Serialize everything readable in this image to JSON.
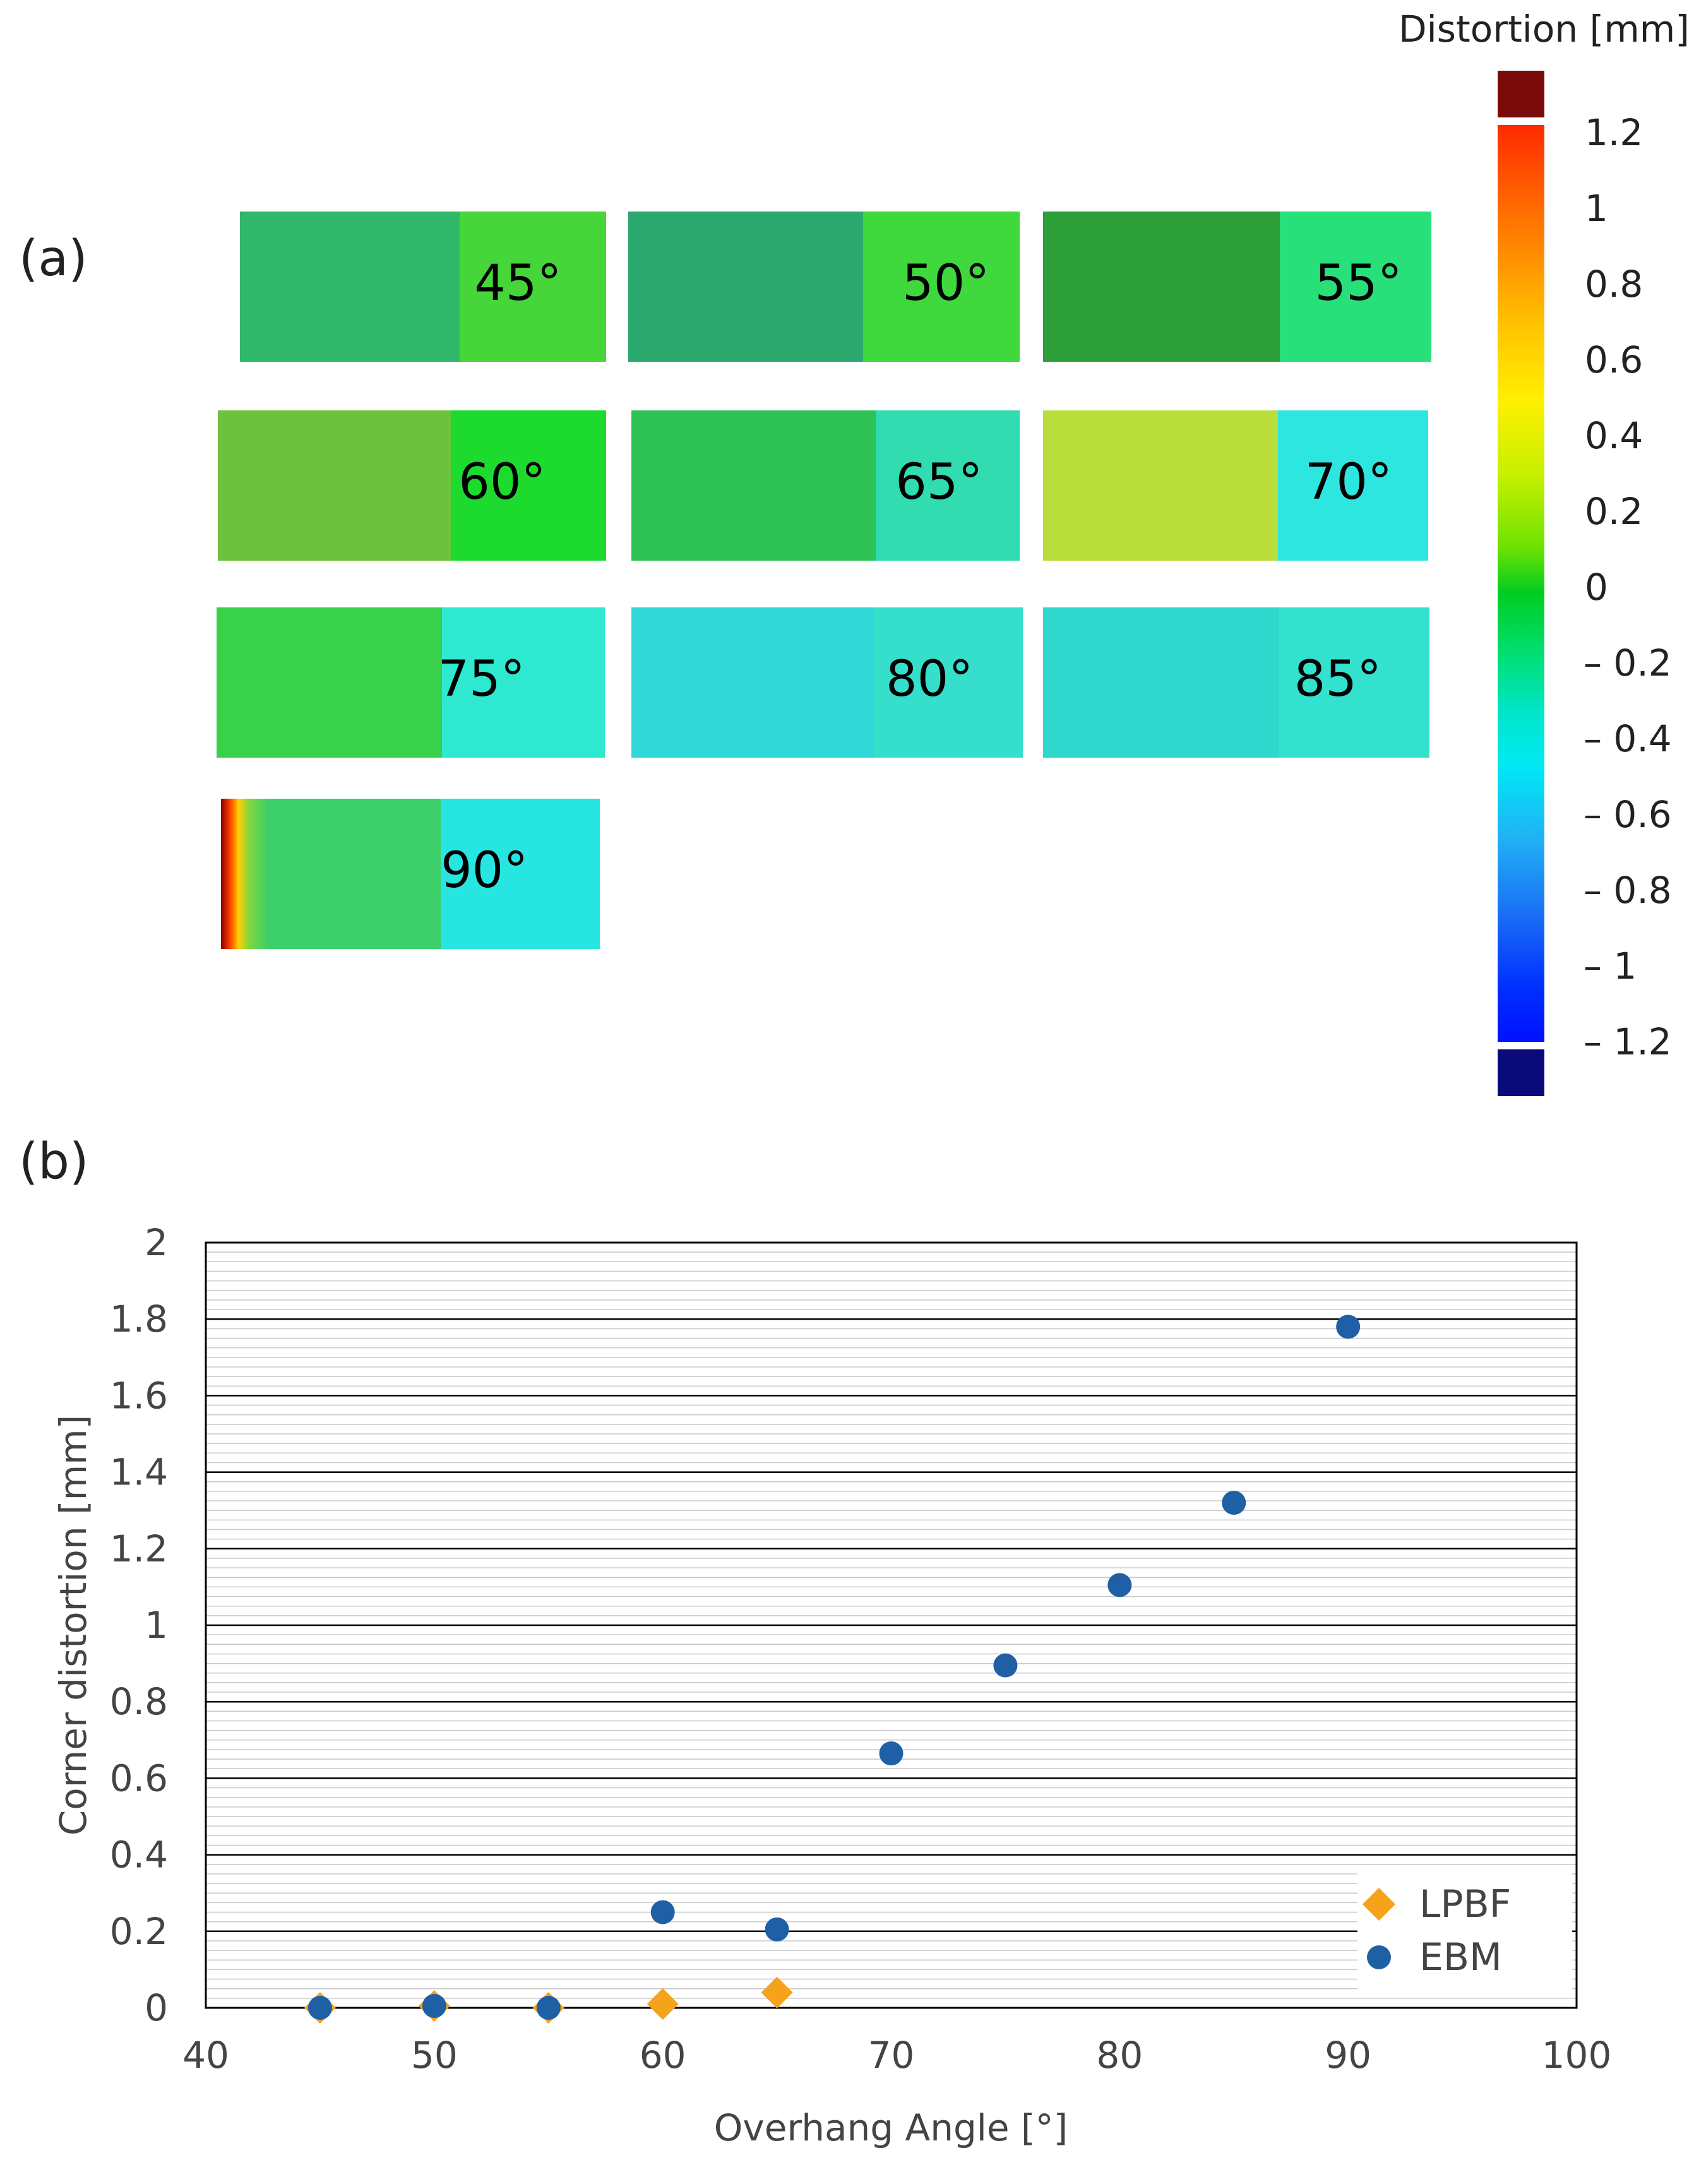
{
  "panel_a": {
    "label": "(a)",
    "specimens": [
      {
        "angle": "45°",
        "left_color": "#2fb86a",
        "right_color": "#46d63a"
      },
      {
        "angle": "50°",
        "left_color": "#2aa86e",
        "right_color": "#3fd83d"
      },
      {
        "angle": "55°",
        "left_color": "#2d9f3a",
        "right_color": "#27e07a"
      },
      {
        "angle": "60°",
        "left_color": "#6cc23d",
        "right_color": "#1dda2f"
      },
      {
        "angle": "65°",
        "left_color": "#2fc254",
        "right_color": "#30dcb0"
      },
      {
        "angle": "70°",
        "left_color": "#b9dd3b",
        "right_color": "#2ee6e0"
      },
      {
        "angle": "75°",
        "left_color": "#39d04a",
        "right_color": "#2ee8cf"
      },
      {
        "angle": "80°",
        "left_color": "#2fd8d6",
        "right_color": "#35dfcc"
      },
      {
        "angle": "85°",
        "left_color": "#2fd7cc",
        "right_color": "#33e2ce"
      },
      {
        "angle": "90°",
        "left_color": "#3ccf6a",
        "right_color": "#27e6e2",
        "edge_color": "#8b0000"
      }
    ],
    "colorbar": {
      "title": "Distortion [mm]",
      "ticks": [
        "1.2",
        "1",
        "0.8",
        "0.6",
        "0.4",
        "0.2",
        "0",
        "– 0.2",
        "– 0.4",
        "– 0.6",
        "– 0.8",
        "– 1",
        "– 1.2"
      ],
      "over_color": "#7a0a0a",
      "under_color": "#0a0a7a"
    }
  },
  "panel_b": {
    "label": "(b)"
  },
  "chart_data": {
    "type": "scatter",
    "title": "",
    "xlabel": "Overhang Angle [°]",
    "ylabel": "Corner distortion [mm]",
    "xlim": [
      40,
      100
    ],
    "ylim": [
      0,
      2
    ],
    "x_ticks": [
      40,
      50,
      60,
      70,
      80,
      90,
      100
    ],
    "y_ticks": [
      0,
      0.2,
      0.4,
      0.6,
      0.8,
      1,
      1.2,
      1.4,
      1.6,
      1.8,
      2
    ],
    "y_tick_labels": [
      "0",
      "0.2",
      "0.4",
      "0.6",
      "0.8",
      "1",
      "1.2",
      "1.4",
      "1.6",
      "1.8",
      "2"
    ],
    "legend_position": "bottom-right",
    "series": [
      {
        "name": "LPBF",
        "marker": "diamond",
        "color": "#F5A31A",
        "x": [
          45,
          50,
          55,
          60,
          65
        ],
        "y": [
          0.0,
          0.005,
          0.0,
          0.01,
          0.04
        ]
      },
      {
        "name": "EBM",
        "marker": "circle",
        "color": "#1F5FA6",
        "x": [
          45,
          50,
          55,
          60,
          65,
          70,
          75,
          80,
          85,
          90
        ],
        "y": [
          0.0,
          0.005,
          0.0,
          0.25,
          0.205,
          0.665,
          0.895,
          1.105,
          1.32,
          1.78
        ]
      }
    ]
  }
}
